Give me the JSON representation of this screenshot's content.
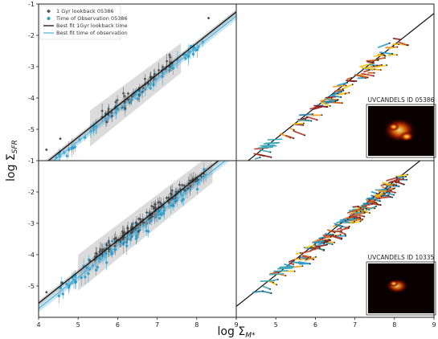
{
  "chart_data": {
    "type": "scatter",
    "xlabel": "log Σ_{M*}",
    "ylabel": "log Σ_{SFR}",
    "xlim": [
      4,
      9
    ],
    "ylim": [
      -6,
      -1
    ],
    "x_ticks": [
      "4",
      "5",
      "6",
      "7",
      "8",
      "9"
    ],
    "y_ticks": [
      "-1",
      "-2",
      "-3",
      "-4",
      "-5"
    ],
    "legend": {
      "placement": "top-left",
      "entries": [
        {
          "label": "1 Gyr lookback 05386",
          "kind": "marker",
          "color": "#555555"
        },
        {
          "label": "Time of Observation 05386",
          "kind": "marker",
          "color": "#2d9bc9"
        },
        {
          "label": "Best fit 1Gyr lookback time",
          "kind": "line",
          "color": "#111111"
        },
        {
          "label": "Best fit time of observation",
          "kind": "line",
          "color": "#5ab4dc"
        }
      ]
    },
    "colors": {
      "lookback": "#4a4a4a",
      "observation": "#2d9bc9",
      "fit_lookback": "#111111",
      "fit_observation": "#5ab4dc",
      "band_lookback": "#9a9a9a",
      "band_observation": "#a9d4ea"
    },
    "panels": [
      {
        "id": "top-left",
        "kind": "points",
        "fit_lookback": {
          "slope": 1.0,
          "intercept": -10.25
        },
        "fit_observation": {
          "slope": 1.0,
          "intercept": -10.38
        },
        "lookback": {
          "x_range": [
            5.6,
            7.4
          ],
          "center": [
            6.5,
            -3.75
          ],
          "n": 55,
          "spread": 0.18
        },
        "observation": {
          "x_range": [
            4.4,
            8.2
          ],
          "center": [
            6.3,
            -4.1
          ],
          "n": 70,
          "spread": 0.12
        },
        "outliers_lookback": [
          [
            4.2,
            -5.65
          ],
          [
            4.55,
            -5.3
          ],
          [
            8.3,
            -1.45
          ]
        ]
      },
      {
        "id": "top-right",
        "kind": "tracks",
        "fit": {
          "slope": 1.0,
          "intercept": -10.3
        },
        "tracks_range": [
          4.1,
          8.1
        ],
        "n_tracks": 80,
        "inset_title": "UVCANDELS ID 05386"
      },
      {
        "id": "bottom-left",
        "kind": "points",
        "fit_lookback": {
          "slope": 1.0,
          "intercept": -9.55
        },
        "fit_observation": {
          "slope": 1.0,
          "intercept": -9.72
        },
        "lookback": {
          "x_range": [
            5.3,
            8.2
          ],
          "center": [
            6.8,
            -2.9
          ],
          "n": 130,
          "spread": 0.15
        },
        "observation": {
          "x_range": [
            4.5,
            8.3
          ],
          "center": [
            6.6,
            -3.3
          ],
          "n": 110,
          "spread": 0.18
        },
        "outliers_lookback": [
          [
            4.2,
            -5.2
          ],
          [
            4.6,
            -4.9
          ]
        ]
      },
      {
        "id": "bottom-right",
        "kind": "tracks",
        "fit": {
          "slope": 1.0,
          "intercept": -9.65
        },
        "tracks_range": [
          4.4,
          8.1
        ],
        "n_tracks": 160,
        "inset_title": "UVCANDELS ID 10335"
      }
    ]
  }
}
